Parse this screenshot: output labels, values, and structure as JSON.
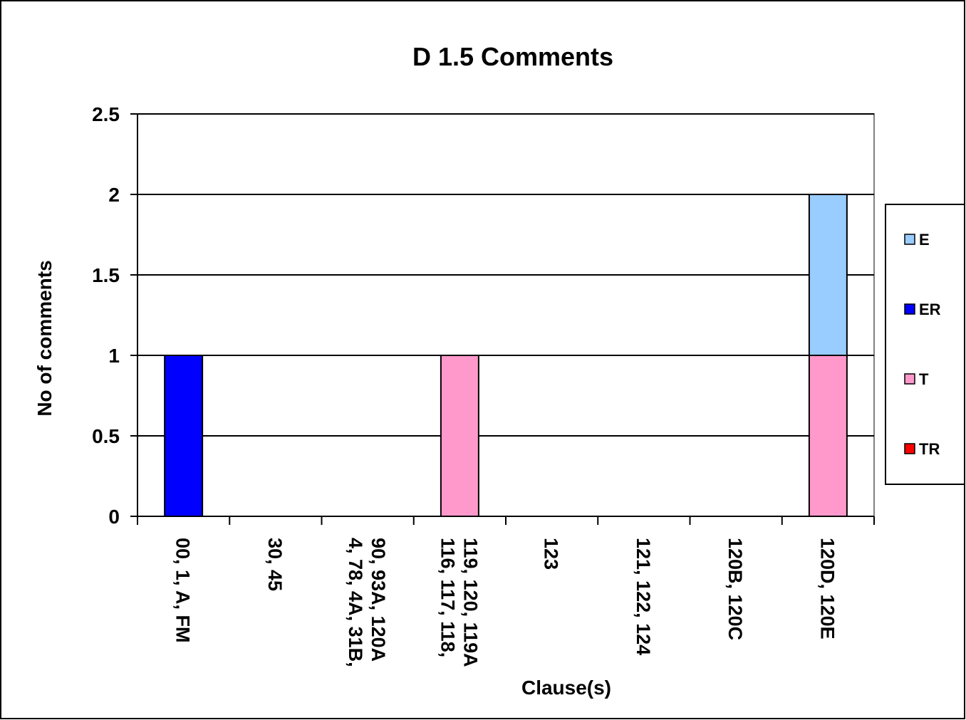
{
  "chart_data": {
    "type": "bar",
    "stacked": true,
    "title": "D 1.5 Comments",
    "xlabel": "Clause(s)",
    "ylabel": "No of comments",
    "ylim": [
      0,
      2.5
    ],
    "yticks": [
      "0",
      "0.5",
      "1",
      "1.5",
      "2",
      "2.5"
    ],
    "grid": true,
    "legend_position": "right",
    "categories": [
      [
        "00, 1, A, FM"
      ],
      [
        "30, 45"
      ],
      [
        "4, 78, 4A, 31B,",
        "90, 93A, 120A"
      ],
      [
        "116, 117, 118,",
        "119, 120, 119A"
      ],
      [
        "123"
      ],
      [
        "121, 122, 124"
      ],
      [
        "120B, 120C"
      ],
      [
        "120D, 120E"
      ]
    ],
    "series": [
      {
        "name": "TR",
        "color": "#ff0000",
        "values": [
          0,
          0,
          0,
          0,
          0,
          0,
          0,
          0
        ]
      },
      {
        "name": "T",
        "color": "#ff99cc",
        "values": [
          0,
          0,
          0,
          1,
          0,
          0,
          0,
          1
        ]
      },
      {
        "name": "ER",
        "color": "#0000ff",
        "values": [
          1,
          0,
          0,
          0,
          0,
          0,
          0,
          0
        ]
      },
      {
        "name": "E",
        "color": "#99ccff",
        "values": [
          0,
          0,
          0,
          0,
          0,
          0,
          0,
          1
        ]
      }
    ],
    "legend_order": [
      "E",
      "ER",
      "T",
      "TR"
    ]
  }
}
